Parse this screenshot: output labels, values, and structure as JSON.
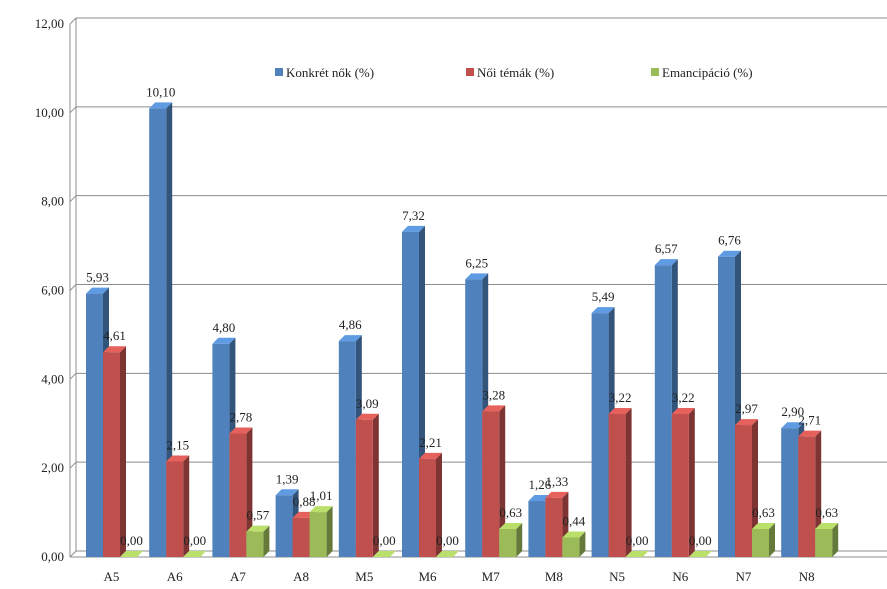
{
  "chart_data": {
    "type": "bar",
    "title": "",
    "xlabel": "",
    "ylabel": "",
    "ylim": [
      0,
      12
    ],
    "y_ticks": [
      "0,00",
      "2,00",
      "4,00",
      "6,00",
      "8,00",
      "10,00",
      "12,00"
    ],
    "grid": true,
    "legend_position": "top",
    "categories": [
      "A5",
      "A6",
      "A7",
      "A8",
      "M5",
      "M6",
      "M7",
      "M8",
      "N5",
      "N6",
      "N7",
      "N8"
    ],
    "series": [
      {
        "name": "Konkrét nők (%)",
        "color": "#4f81bd",
        "values": [
          5.93,
          10.1,
          4.8,
          1.39,
          4.86,
          7.32,
          6.25,
          1.26,
          5.49,
          6.57,
          6.76,
          2.9
        ],
        "labels": [
          "5,93",
          "10,10",
          "4,80",
          "1,39",
          "4,86",
          "7,32",
          "6,25",
          "1,26",
          "5,49",
          "6,57",
          "6,76",
          "2,90"
        ]
      },
      {
        "name": "Női témák (%)",
        "color": "#c0504d",
        "values": [
          4.61,
          2.15,
          2.78,
          0.88,
          3.09,
          2.21,
          3.28,
          1.33,
          3.22,
          3.22,
          2.97,
          2.71
        ],
        "labels": [
          "4,61",
          "2,15",
          "2,78",
          "0,88",
          "3,09",
          "2,21",
          "3,28",
          "1,33",
          "3,22",
          "3,22",
          "2,97",
          "2,71"
        ]
      },
      {
        "name": "Emancipáció (%)",
        "color": "#9bbb59",
        "values": [
          0.0,
          0.0,
          0.57,
          1.01,
          0.0,
          0.0,
          0.63,
          0.44,
          0.0,
          0.0,
          0.63,
          0.63
        ],
        "labels": [
          "0,00",
          "0,00",
          "0,57",
          "1,01",
          "0,00",
          "0,00",
          "0,63",
          "0,44",
          "0,00",
          "0,00",
          "0,63",
          "0,63"
        ]
      }
    ]
  }
}
